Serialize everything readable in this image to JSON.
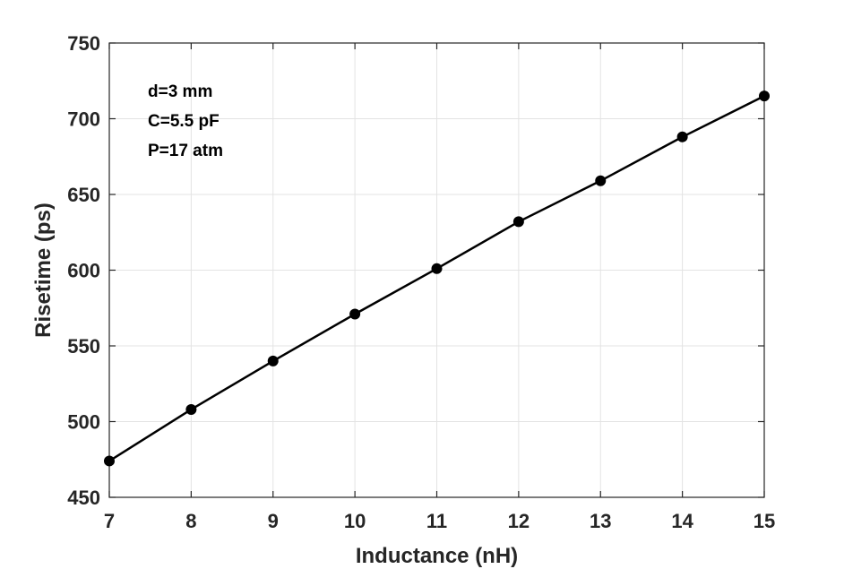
{
  "chart_data": {
    "type": "line",
    "xlabel": "Inductance (nH)",
    "ylabel": "Risetime (ps)",
    "xlim": [
      7,
      15
    ],
    "ylim": [
      450,
      750
    ],
    "xticks": [
      7,
      8,
      9,
      10,
      11,
      12,
      13,
      14,
      15
    ],
    "yticks": [
      450,
      500,
      550,
      600,
      650,
      700,
      750
    ],
    "grid": true,
    "annotations": [
      "d=3 mm",
      "C=5.5 pF",
      "P=17 atm"
    ],
    "series": [
      {
        "x": [
          7,
          8,
          9,
          10,
          11,
          12,
          13,
          14,
          15
        ],
        "values": [
          474,
          508,
          540,
          571,
          601,
          632,
          659,
          688,
          715
        ],
        "color": "#000000",
        "marker": "circle"
      }
    ]
  }
}
